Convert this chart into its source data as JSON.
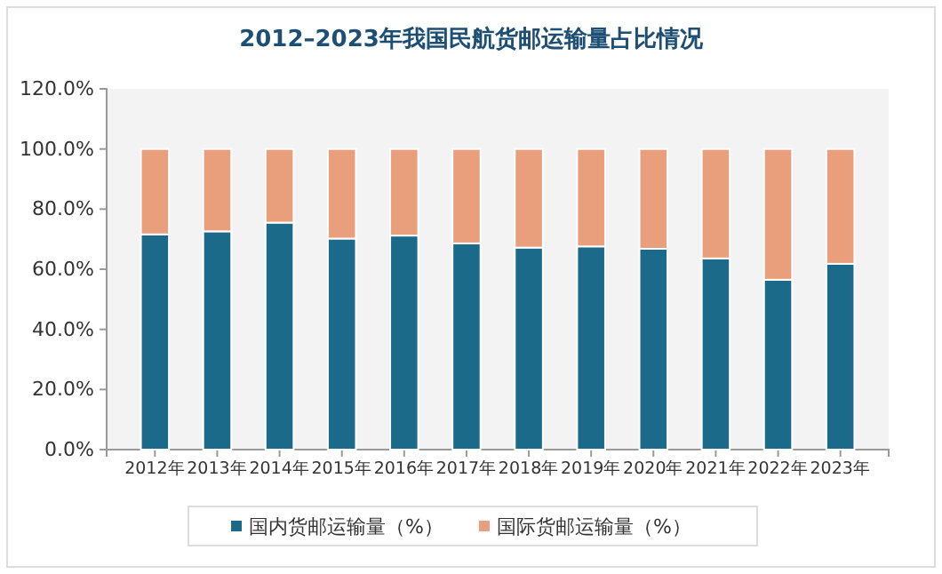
{
  "chart_data": {
    "type": "bar",
    "title": "2012–2023年我国民航货邮运输量占比情况",
    "stacked": true,
    "categories": [
      "2012年",
      "2013年",
      "2014年",
      "2015年",
      "2016年",
      "2017年",
      "2018年",
      "2019年",
      "2020年",
      "2021年",
      "2022年",
      "2023年"
    ],
    "series": [
      {
        "name": "国内货邮运输量（%）",
        "color": "#1b6a8a",
        "values": [
          71.6,
          72.6,
          75.5,
          70.2,
          71.2,
          68.6,
          67.2,
          67.6,
          66.8,
          63.6,
          56.5,
          61.8
        ]
      },
      {
        "name": "国际货邮运输量（%）",
        "color": "#e99f7c",
        "values": [
          28.4,
          27.4,
          24.5,
          29.8,
          28.8,
          31.4,
          32.8,
          32.4,
          33.2,
          36.4,
          43.5,
          38.2
        ]
      }
    ],
    "ylim": [
      0,
      120
    ],
    "yticks": [
      {
        "value": 0,
        "label": "0.0%"
      },
      {
        "value": 20,
        "label": "20.0%"
      },
      {
        "value": 40,
        "label": "40.0%"
      },
      {
        "value": 60,
        "label": "60.0%"
      },
      {
        "value": 80,
        "label": "80.0%"
      },
      {
        "value": 100,
        "label": "100.0%"
      },
      {
        "value": 120,
        "label": "120.0%"
      }
    ],
    "legend": "bottom"
  }
}
